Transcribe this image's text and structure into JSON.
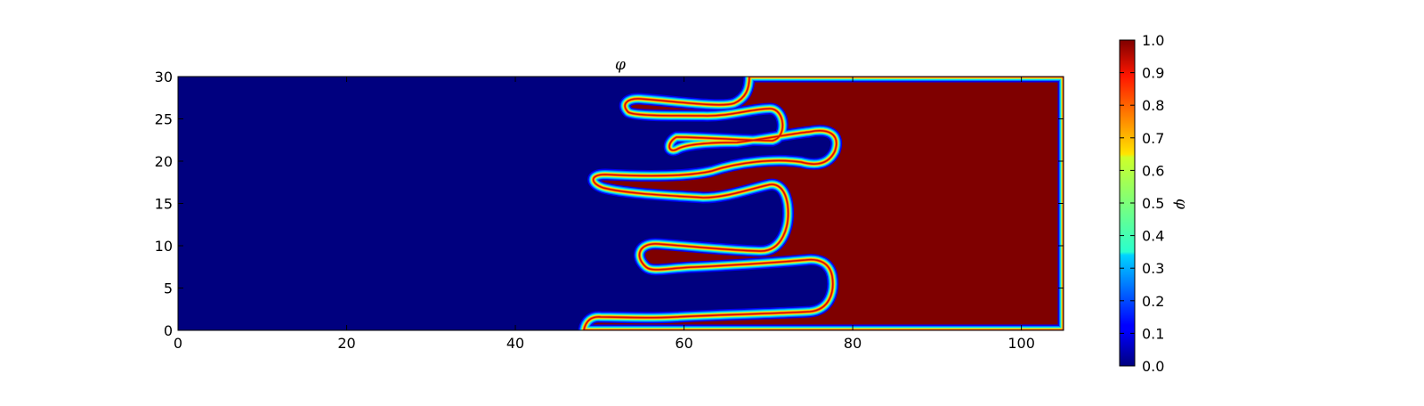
{
  "chart_data": {
    "type": "heatmap",
    "title": "φ",
    "xlabel": "",
    "ylabel": "",
    "xlim": [
      0,
      105
    ],
    "ylim": [
      0,
      30
    ],
    "x_ticks": [
      0,
      20,
      40,
      60,
      80,
      100
    ],
    "y_ticks": [
      0,
      5,
      10,
      15,
      20,
      25,
      30
    ],
    "colormap": "jet",
    "colorbar": {
      "label": "φ",
      "range": [
        0.0,
        1.0
      ],
      "ticks": [
        "0.0",
        "0.1",
        "0.2",
        "0.3",
        "0.4",
        "0.5",
        "0.6",
        "0.7",
        "0.8",
        "0.9",
        "1.0"
      ]
    },
    "field_description": "Phase field: φ≈0 on the left, φ≈1 on the right, with an interleaving fingered interface between x≈48 and x≈78",
    "interface_fingers": [
      {
        "side": "red_into_blue",
        "y_center": 26.5,
        "x_range": [
          53.5,
          66
        ]
      },
      {
        "side": "blue_into_red",
        "y_center": 24.0,
        "x_range": [
          56,
          70.5
        ]
      },
      {
        "side": "red_into_blue",
        "y_center": 22.0,
        "x_range": [
          59,
          70
        ]
      },
      {
        "side": "blue_into_red",
        "y_center": 20.5,
        "x_range": [
          60,
          77.5
        ]
      },
      {
        "side": "red_into_blue",
        "y_center": 17.0,
        "x_range": [
          49,
          72
        ]
      },
      {
        "side": "blue_into_red",
        "y_center": 13.0,
        "x_range": [
          54,
          72
        ]
      },
      {
        "side": "red_into_blue",
        "y_center": 8.0,
        "x_range": [
          54.5,
          78
        ]
      },
      {
        "side": "blue_into_red",
        "y_center": 4.0,
        "x_range": [
          50,
          77
        ]
      },
      {
        "side": "red_into_blue",
        "y_center": 1.0,
        "x_range": [
          48,
          77
        ]
      }
    ]
  }
}
